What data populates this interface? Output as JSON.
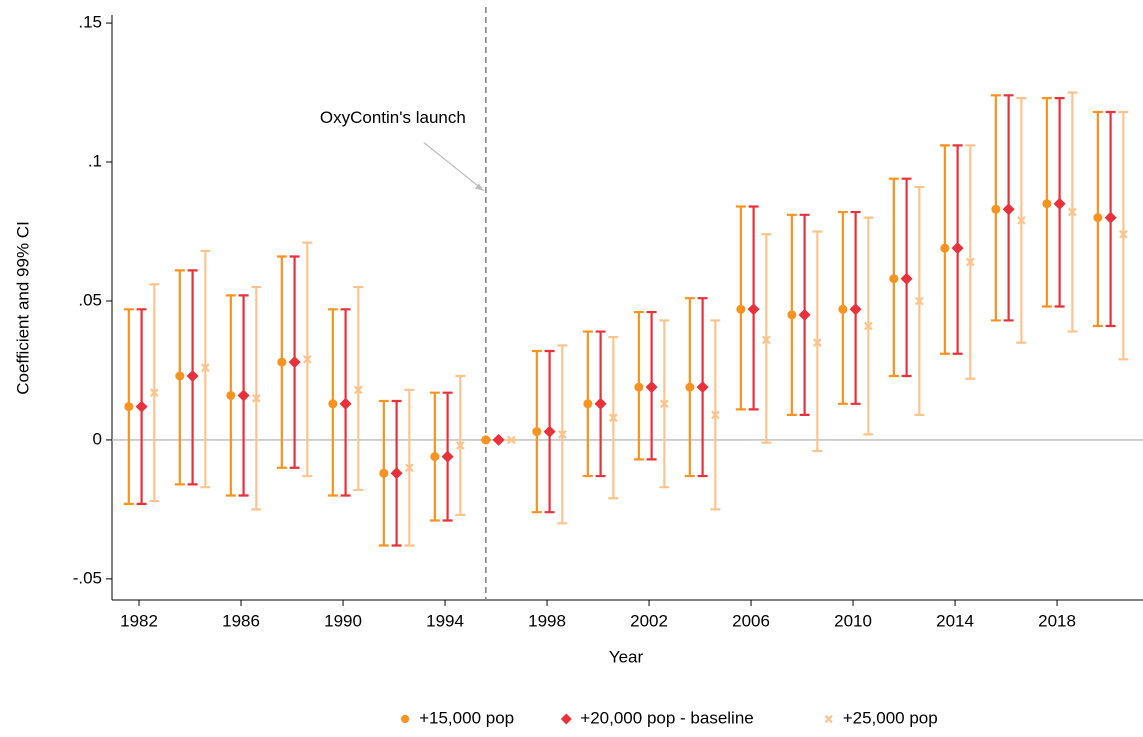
{
  "chart_data": {
    "type": "errorbar",
    "xlabel": "Year",
    "ylabel": "Coefficient and 99% CI",
    "xlim": [
      1980.94,
      2021.37
    ],
    "ylim": [
      -0.0576,
      0.1529
    ],
    "xticks": [
      1982,
      1986,
      1990,
      1994,
      1998,
      2002,
      2006,
      2010,
      2014,
      2018
    ],
    "yticks": [
      {
        "value": -0.05,
        "label": "-.05"
      },
      0,
      {
        "value": 0.05,
        "label": ".05"
      },
      {
        "value": 0.1,
        "label": ".1"
      },
      {
        "value": 0.15,
        "label": ".15"
      }
    ],
    "hline": 0,
    "vline": 1995.6,
    "annotation": {
      "text": "OxyContin's launch",
      "x": 1995.6,
      "y": 0.089
    },
    "legend": "bottom",
    "series": [
      {
        "name": "+15,000 pop",
        "color": "#f7931e",
        "marker": "circle",
        "x": [
          1981.6,
          1983.6,
          1985.6,
          1987.6,
          1989.6,
          1991.6,
          1993.6,
          1995.6,
          1997.6,
          1999.6,
          2001.6,
          2003.6,
          2005.6,
          2007.6,
          2009.6,
          2011.6,
          2013.6,
          2015.6,
          2017.6,
          2019.6
        ],
        "values": [
          0.012,
          0.023,
          0.016,
          0.028,
          0.013,
          -0.012,
          -0.006,
          0,
          0.003,
          0.013,
          0.019,
          0.019,
          0.047,
          0.045,
          0.047,
          0.058,
          0.069,
          0.083,
          0.085,
          0.08
        ],
        "lower": [
          -0.023,
          -0.016,
          -0.02,
          -0.01,
          -0.02,
          -0.038,
          -0.029,
          0,
          -0.026,
          -0.013,
          -0.007,
          -0.013,
          0.011,
          0.009,
          0.013,
          0.023,
          0.031,
          0.043,
          0.048,
          0.041
        ],
        "upper": [
          0.047,
          0.061,
          0.052,
          0.066,
          0.047,
          0.014,
          0.017,
          0,
          0.032,
          0.039,
          0.046,
          0.051,
          0.084,
          0.081,
          0.082,
          0.094,
          0.106,
          0.124,
          0.123,
          0.118
        ]
      },
      {
        "name": "+20,000 pop - baseline",
        "color": "#e8313a",
        "marker": "diamond",
        "x": [
          1982.1,
          1984.1,
          1986.1,
          1988.1,
          1990.1,
          1992.1,
          1994.1,
          1996.1,
          1998.1,
          2000.1,
          2002.1,
          2004.1,
          2006.1,
          2008.1,
          2010.1,
          2012.1,
          2014.1,
          2016.1,
          2018.1,
          2020.1
        ],
        "values": [
          0.012,
          0.023,
          0.016,
          0.028,
          0.013,
          -0.012,
          -0.006,
          0,
          0.003,
          0.013,
          0.019,
          0.019,
          0.047,
          0.045,
          0.047,
          0.058,
          0.069,
          0.083,
          0.085,
          0.08
        ],
        "lower": [
          -0.023,
          -0.016,
          -0.02,
          -0.01,
          -0.02,
          -0.038,
          -0.029,
          0,
          -0.026,
          -0.013,
          -0.007,
          -0.013,
          0.011,
          0.009,
          0.013,
          0.023,
          0.031,
          0.043,
          0.048,
          0.041
        ],
        "upper": [
          0.047,
          0.061,
          0.052,
          0.066,
          0.047,
          0.014,
          0.017,
          0,
          0.032,
          0.039,
          0.046,
          0.051,
          0.084,
          0.081,
          0.082,
          0.094,
          0.106,
          0.124,
          0.123,
          0.118
        ]
      },
      {
        "name": "+25,000 pop",
        "color": "#fcc48c",
        "marker": "x",
        "x": [
          1982.6,
          1984.6,
          1986.6,
          1988.6,
          1990.6,
          1992.6,
          1994.6,
          1996.6,
          1998.6,
          2000.6,
          2002.6,
          2004.6,
          2006.6,
          2008.6,
          2010.6,
          2012.6,
          2014.6,
          2016.6,
          2018.6,
          2020.6
        ],
        "values": [
          0.017,
          0.026,
          0.015,
          0.029,
          0.018,
          -0.01,
          -0.002,
          0,
          0.002,
          0.008,
          0.013,
          0.009,
          0.036,
          0.035,
          0.041,
          0.05,
          0.064,
          0.079,
          0.082,
          0.074
        ],
        "lower": [
          -0.022,
          -0.017,
          -0.025,
          -0.013,
          -0.018,
          -0.038,
          -0.027,
          0,
          -0.03,
          -0.021,
          -0.017,
          -0.025,
          -0.001,
          -0.004,
          0.002,
          0.009,
          0.022,
          0.035,
          0.039,
          0.029
        ],
        "upper": [
          0.056,
          0.068,
          0.055,
          0.071,
          0.055,
          0.018,
          0.023,
          0,
          0.034,
          0.037,
          0.043,
          0.043,
          0.074,
          0.075,
          0.08,
          0.091,
          0.106,
          0.123,
          0.125,
          0.118
        ]
      }
    ]
  }
}
